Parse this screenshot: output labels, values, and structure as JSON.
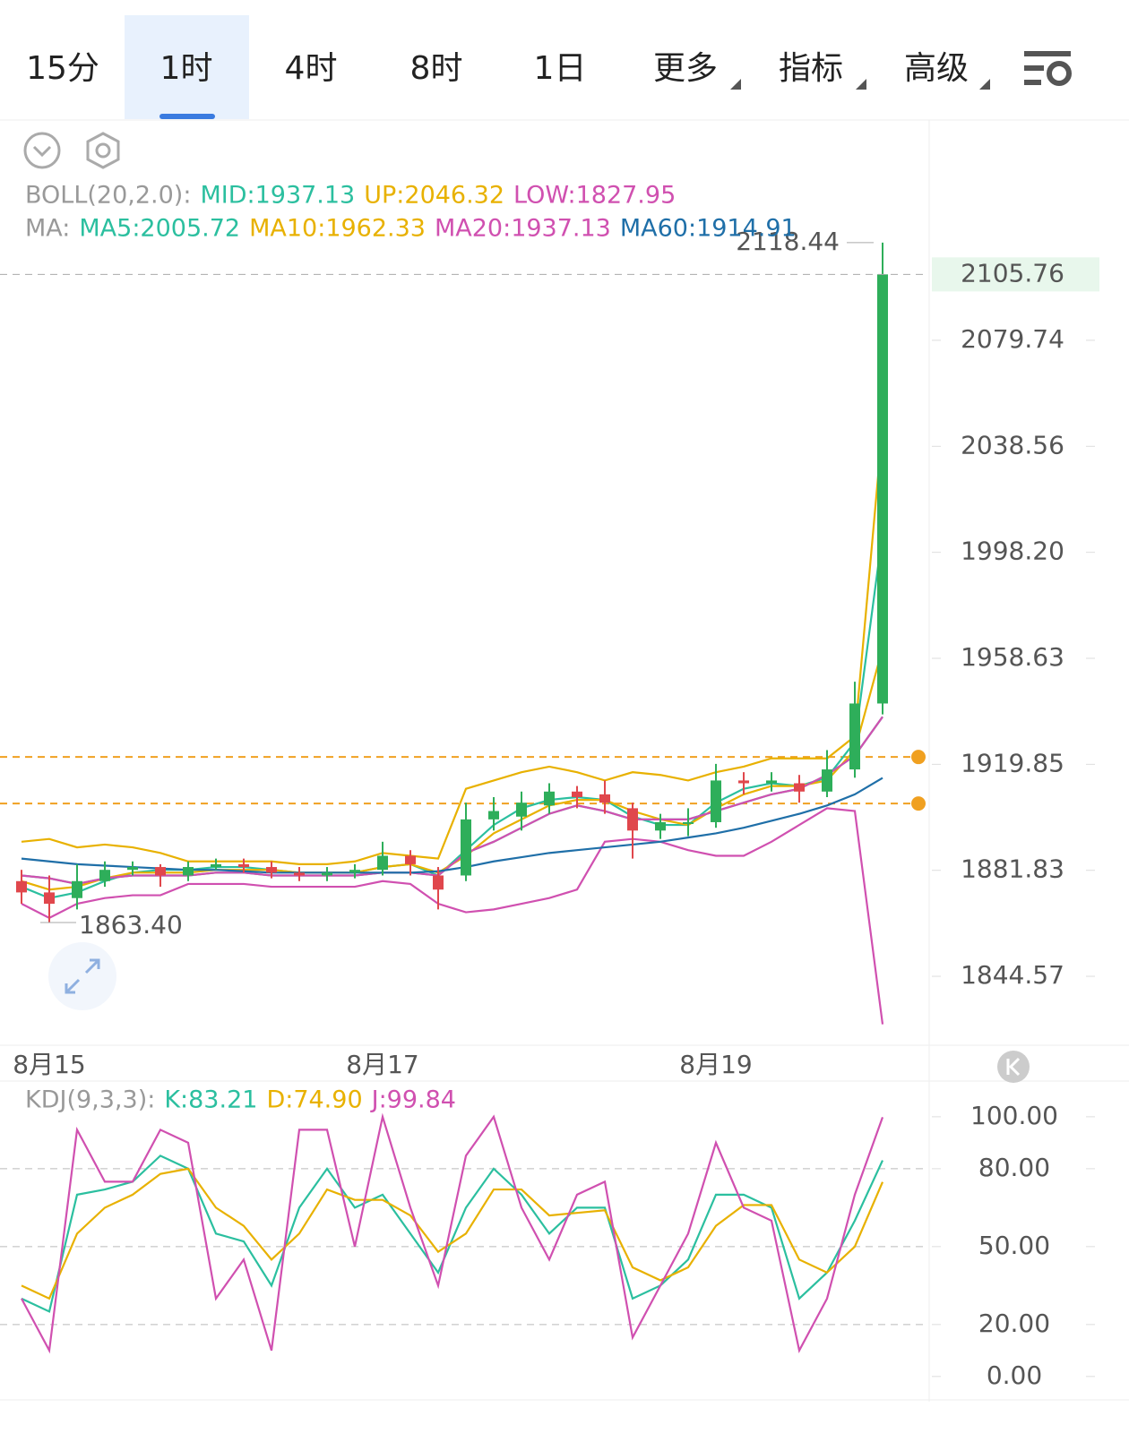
{
  "tabs": [
    "15分",
    "1时",
    "4时",
    "8时",
    "1日",
    "更多",
    "指标",
    "高级"
  ],
  "selected_tab": 1,
  "chart_data": [
    {
      "type": "candlestick",
      "categories": [
        null,
        "8月15",
        null,
        null,
        null,
        null,
        null,
        null,
        null,
        null,
        null,
        null,
        null,
        "8月17",
        null,
        null,
        null,
        null,
        null,
        null,
        null,
        null,
        null,
        null,
        null,
        "8月19",
        null,
        null,
        null,
        null,
        null,
        null
      ],
      "open": [
        1878,
        1874,
        1872,
        1878,
        1882,
        1883,
        1880,
        1883,
        1884,
        1883,
        1881,
        1880,
        1881,
        1882,
        1887,
        1880,
        1880,
        1900,
        1901,
        1905,
        1910,
        1909,
        1904,
        1896,
        1899,
        1899,
        1914,
        1913,
        1913,
        1910,
        1918,
        1942
      ],
      "high": [
        1882,
        1880,
        1884,
        1885,
        1885,
        1884,
        1885,
        1886,
        1886,
        1885,
        1883,
        1883,
        1884,
        1892,
        1889,
        1883,
        1906,
        1908,
        1910,
        1913,
        1912,
        1914,
        1906,
        1902,
        1904,
        1920,
        1917,
        1917,
        1916,
        1925,
        1950,
        2118.44
      ],
      "low": [
        1870,
        1863.4,
        1868,
        1876,
        1880,
        1876,
        1878,
        1882,
        1881,
        1879,
        1878,
        1878,
        1879,
        1880,
        1880,
        1868,
        1878,
        1896,
        1896,
        1902,
        1904,
        1902,
        1886,
        1893,
        1894,
        1897,
        1909,
        1910,
        1906,
        1908,
        1915,
        1938
      ],
      "close": [
        1874,
        1870,
        1878,
        1882,
        1883,
        1880,
        1883,
        1884,
        1883,
        1881,
        1880,
        1881,
        1882,
        1887,
        1884,
        1875,
        1900,
        1903,
        1906,
        1910,
        1908,
        1906,
        1896,
        1899,
        1899,
        1914,
        1913,
        1914,
        1910,
        1918,
        1942,
        2105.76
      ],
      "up_color": "#2eae5a",
      "down_color": "#e0474c",
      "log_scale": true,
      "ylim": [
        1822.9,
        2165.8
      ],
      "yticks": [
        2079.74,
        2038.56,
        {
          "value": 1998.2,
          "label": "1998.20"
        },
        1958.63,
        1919.85,
        1881.83,
        1844.57
      ],
      "low_label": "1863.40",
      "price_lines": [
        1922.5,
        1905.7
      ],
      "price_line_color": "#f0a020",
      "boll": {
        "label": "BOLL(20,2.0):",
        "series": [
          {
            "name": "MID:1937.13",
            "color": "#2bbf9f",
            "values": [
              1880,
              1879,
              1877,
              1879,
              1880,
              1880,
              1880,
              1881,
              1881,
              1880,
              1880,
              1880,
              1880,
              1881,
              1881,
              1880,
              1888,
              1892,
              1897,
              1902,
              1905,
              1903,
              1900,
              1900,
              1900,
              1903,
              1906,
              1909,
              1911,
              1916,
              1923,
              1937.13
            ]
          },
          {
            "name": "UP:2046.32",
            "color": "#e8b100",
            "values": [
              1892,
              1893,
              1890,
              1891,
              1890,
              1888,
              1885,
              1885,
              1885,
              1885,
              1884,
              1884,
              1885,
              1888,
              1887,
              1886,
              1911,
              1914,
              1917,
              1919,
              1917,
              1914,
              1917,
              1916,
              1914,
              1917,
              1919,
              1922,
              1922,
              1922,
              1930,
              2046.32
            ]
          },
          {
            "name": "LOW:1827.95",
            "color": "#d050b0",
            "values": [
              1870,
              1865,
              1870,
              1872,
              1873,
              1873,
              1877,
              1877,
              1877,
              1876,
              1876,
              1876,
              1876,
              1878,
              1877,
              1870,
              1867,
              1868,
              1870,
              1872,
              1875,
              1892,
              1893,
              1892,
              1889,
              1887,
              1887,
              1892,
              1898,
              1904,
              1903,
              1827.95
            ]
          }
        ]
      },
      "ma": {
        "label": "MA:",
        "series": [
          {
            "name": "MA5:2005.72",
            "color": "#2bbf9f",
            "values": [
              1876,
              1872,
              1874,
              1878,
              1881,
              1882,
              1882,
              1883,
              1883,
              1882,
              1881,
              1881,
              1881,
              1883,
              1884,
              1880,
              1889,
              1898,
              1904,
              1907,
              1908,
              1907,
              1901,
              1898,
              1898,
              1906,
              1911,
              1913,
              1912,
              1915,
              1928,
              2005.72
            ]
          },
          {
            "name": "MA10:1962.33",
            "color": "#e8b100",
            "values": [
              1878,
              1875,
              1876,
              1879,
              1881,
              1881,
              1881,
              1882,
              1882,
              1882,
              1881,
              1881,
              1881,
              1883,
              1884,
              1881,
              1887,
              1895,
              1900,
              1905,
              1907,
              1907,
              1903,
              1900,
              1898,
              1904,
              1909,
              1912,
              1912,
              1914,
              1925,
              1962.33
            ]
          },
          {
            "name": "MA20:1937.13",
            "color": "#d050b0",
            "values": [
              1880,
              1879,
              1877,
              1879,
              1880,
              1880,
              1880,
              1881,
              1881,
              1880,
              1880,
              1880,
              1880,
              1881,
              1881,
              1880,
              1888,
              1892,
              1897,
              1902,
              1905,
              1903,
              1900,
              1900,
              1900,
              1903,
              1906,
              1909,
              1911,
              1916,
              1923,
              1937.13
            ]
          },
          {
            "name": "MA60:1914.91",
            "color": "#1f6fa8",
            "values": [
              1886,
              1885,
              1884,
              1883.5,
              1883,
              1882.5,
              1882,
              1882,
              1881.5,
              1881,
              1881,
              1881,
              1881,
              1881,
              1881,
              1881.5,
              1883,
              1885,
              1886.5,
              1888,
              1889,
              1890,
              1891,
              1892,
              1893.5,
              1895,
              1897,
              1899.5,
              1902,
              1905,
              1909,
              1914.91
            ]
          }
        ]
      }
    },
    {
      "type": "line",
      "label": "KDJ(9,3,3):",
      "ylim": [
        -8,
        111
      ],
      "yticks": [
        {
          "value": 100,
          "label": "100.00"
        },
        {
          "value": 80,
          "label": "80.00"
        },
        {
          "value": 50,
          "label": "50.00"
        },
        {
          "value": 20,
          "label": "20.00"
        },
        {
          "value": 0,
          "label": "0.00"
        }
      ],
      "grid": true,
      "series": [
        {
          "name": "K:83.21",
          "color": "#2bbf9f",
          "values": [
            30,
            25,
            70,
            72,
            75,
            85,
            80,
            55,
            52,
            35,
            65,
            80,
            65,
            70,
            55,
            40,
            65,
            80,
            70,
            55,
            65,
            65,
            30,
            35,
            45,
            70,
            70,
            65,
            30,
            40,
            60,
            83.21
          ]
        },
        {
          "name": "D:74.90",
          "color": "#e8b100",
          "values": [
            35,
            30,
            55,
            65,
            70,
            78,
            80,
            65,
            58,
            45,
            55,
            72,
            68,
            68,
            62,
            48,
            55,
            72,
            72,
            62,
            63,
            64,
            42,
            37,
            42,
            58,
            66,
            66,
            45,
            40,
            50,
            74.9
          ]
        },
        {
          "name": "J:99.84",
          "color": "#d050b0",
          "values": [
            30,
            10,
            95,
            75,
            75,
            95,
            90,
            30,
            45,
            10,
            95,
            95,
            50,
            100,
            65,
            35,
            85,
            100,
            65,
            45,
            70,
            75,
            15,
            35,
            55,
            90,
            65,
            60,
            10,
            30,
            70,
            99.84
          ]
        }
      ]
    }
  ]
}
